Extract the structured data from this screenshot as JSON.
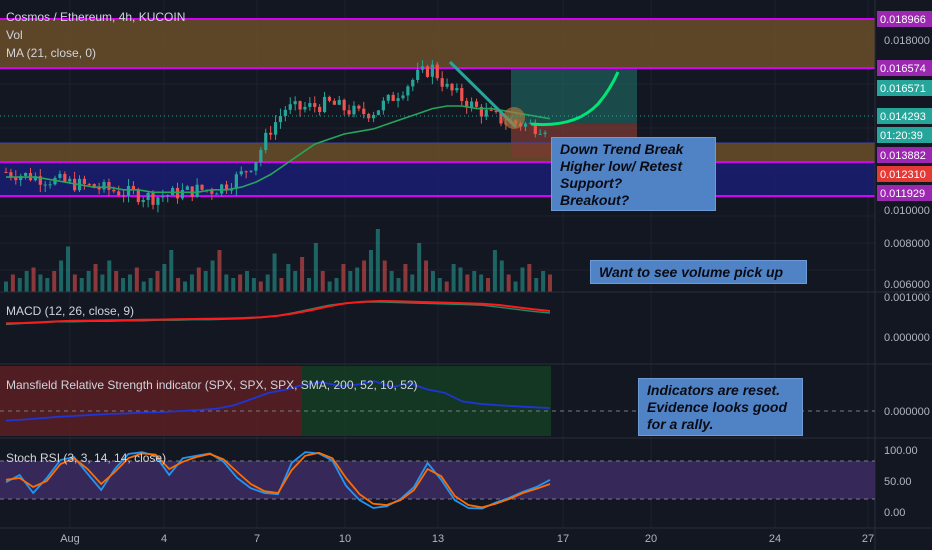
{
  "header": {
    "title": "Cosmos / Ethereum, 4h, KUCOIN",
    "vol_label": "Vol",
    "ma_label": "MA (21, close, 0)"
  },
  "indicators": {
    "macd_label": "MACD (12, 26, close, 9)",
    "mansfield_label": "Mansfield Relative Strength indicator (SPX, SPX, SPX, SMA, 200, 52, 10, 52)",
    "stoch_label": "Stoch RSI (3, 3, 14, 14, close)"
  },
  "notes": {
    "trend": [
      "Down Trend Break",
      "Higher low/ Retest",
      "Support?",
      "Breakout?"
    ],
    "volume": "Want to see volume pick up",
    "indicators": [
      "Indicators are reset.",
      "Evidence looks good",
      "for a rally."
    ]
  },
  "price_axis": {
    "ticks": [
      "0.018000",
      "0.010000",
      "0.008000",
      "0.006000"
    ],
    "tags": [
      {
        "text": "0.018966",
        "bg": "#9c27b0",
        "fg": "#ffffff"
      },
      {
        "text": "0.016574",
        "bg": "#9c27b0",
        "fg": "#ffffff"
      },
      {
        "text": "0.016571",
        "bg": "#26a69a",
        "fg": "#ffffff"
      },
      {
        "text": "0.014293",
        "bg": "#26a69a",
        "fg": "#ffffff"
      },
      {
        "text": "01:20:39",
        "bg": "#26a69a",
        "fg": "#ffffff"
      },
      {
        "text": "0.013882",
        "bg": "#9c27b0",
        "fg": "#ffffff"
      },
      {
        "text": "0.012310",
        "bg": "#e53935",
        "fg": "#ffffff"
      },
      {
        "text": "0.011929",
        "bg": "#9c27b0",
        "fg": "#ffffff"
      }
    ]
  },
  "macd_axis": {
    "ticks": [
      "0.001000",
      "0.000000"
    ]
  },
  "mansfield_axis": {
    "ticks": [
      "0.000000"
    ]
  },
  "stoch_axis": {
    "ticks": [
      "100.00",
      "50.00",
      "0.00"
    ]
  },
  "time_axis": {
    "labels": [
      "Aug",
      "4",
      "7",
      "10",
      "13",
      "17",
      "20",
      "24",
      "27"
    ]
  },
  "colors": {
    "background": "#131722",
    "up": "#26a69a",
    "down": "#ef5350",
    "ma": "#26a65b",
    "resistance_line": "#d500f9",
    "zone_brown": "#7a5a2e",
    "zone_navy": "#1d1e7a",
    "macd": "#2962ff",
    "signal": "#ff1a1a",
    "mansfield": "#1f35d6",
    "stoch_k": "#2196f3",
    "stoch_d": "#ff6d00",
    "note_bg": "#4f83c5",
    "forecast": "#00e676"
  },
  "chart_data": {
    "type": "candlestick",
    "title": "Cosmos / Ethereum, 4h, KUCOIN",
    "x_labels": [
      "Aug",
      "4",
      "7",
      "10",
      "13",
      "17",
      "20",
      "24",
      "27"
    ],
    "last_price": 0.014293,
    "levels": [
      0.018966,
      0.016574,
      0.013882,
      0.011929
    ],
    "zones": [
      {
        "from": 0.016574,
        "to": 0.018966,
        "color": "brown"
      },
      {
        "from": 0.011929,
        "to": 0.013882,
        "color": "navy"
      }
    ],
    "price_series": [
      0.0125,
      0.0124,
      0.0123,
      0.0122,
      0.0121,
      0.012,
      0.0119,
      0.0118,
      0.0117,
      0.0116,
      0.0115,
      0.0116,
      0.0117,
      0.0118,
      0.0118,
      0.012,
      0.0124,
      0.013,
      0.0142,
      0.015,
      0.015,
      0.0151,
      0.0152,
      0.015,
      0.0148,
      0.0149,
      0.0153,
      0.0158,
      0.0163,
      0.0166,
      0.0158,
      0.0154,
      0.015,
      0.0147,
      0.0145,
      0.0144,
      0.0143,
      0.0143
    ],
    "ma_series": [
      0.0123,
      0.0123,
      0.0123,
      0.0122,
      0.0121,
      0.012,
      0.0119,
      0.0119,
      0.0118,
      0.0118,
      0.0117,
      0.0117,
      0.0117,
      0.0117,
      0.0118,
      0.0118,
      0.0119,
      0.0121,
      0.0124,
      0.0128,
      0.0132,
      0.0136,
      0.0138,
      0.014,
      0.0141,
      0.0142,
      0.0144,
      0.0146,
      0.0148,
      0.015,
      0.0151,
      0.0151,
      0.015,
      0.015,
      0.0149,
      0.0148,
      0.0147,
      0.0146
    ],
    "volume": [
      3,
      5,
      4,
      6,
      7,
      5,
      4,
      6,
      9,
      13,
      5,
      4,
      6,
      8,
      5,
      9,
      6,
      4,
      5,
      7,
      3,
      4,
      6,
      8,
      12,
      4,
      3,
      5,
      7,
      6,
      9,
      12,
      5,
      4,
      5,
      6,
      4,
      3,
      5,
      11,
      4,
      8,
      6,
      10,
      4,
      14,
      6,
      3,
      4,
      8,
      6,
      7,
      9,
      12,
      18,
      9,
      6,
      4,
      8,
      5,
      14,
      9,
      6,
      4,
      3,
      8,
      7,
      5,
      6,
      5,
      4,
      12,
      9,
      5,
      3,
      7,
      8,
      4,
      6,
      5
    ],
    "macd": [
      0.00055,
      0.00057,
      0.00058,
      0.0006,
      0.0006,
      0.00061,
      0.00061,
      0.00062,
      0.00062,
      0.00063,
      0.00063,
      0.00064,
      0.00064,
      0.00065,
      0.00066,
      0.00068,
      0.00072,
      0.00078,
      0.00085,
      0.00092,
      0.00096,
      0.00098,
      0.00098,
      0.00097,
      0.00096,
      0.00095,
      0.00094,
      0.00093,
      0.00092,
      0.00088,
      0.00084,
      0.0008,
      0.00077
    ],
    "mansfield": [
      -0.2,
      -0.18,
      -0.15,
      -0.12,
      -0.1,
      -0.08,
      -0.06,
      -0.05,
      -0.03,
      -0.02,
      0.0,
      0.02,
      0.05,
      0.12,
      0.25,
      0.38,
      0.45,
      0.55,
      0.6,
      0.52,
      0.55,
      0.62,
      0.5,
      0.58,
      0.45,
      0.38,
      0.2,
      0.15,
      0.12,
      0.1,
      0.08,
      0.06
    ],
    "stoch_k": [
      48,
      60,
      30,
      55,
      85,
      90,
      62,
      35,
      70,
      95,
      98,
      92,
      60,
      88,
      92,
      96,
      82,
      55,
      38,
      30,
      28,
      80,
      98,
      96,
      84,
      42,
      18,
      5,
      8,
      20,
      40,
      80,
      52,
      18,
      5,
      4,
      14,
      22,
      32,
      40,
      52
    ],
    "stoch_d": [
      52,
      55,
      40,
      50,
      78,
      88,
      70,
      45,
      65,
      88,
      96,
      94,
      70,
      82,
      90,
      95,
      86,
      65,
      45,
      33,
      30,
      68,
      92,
      97,
      88,
      55,
      28,
      12,
      10,
      18,
      35,
      70,
      58,
      25,
      10,
      6,
      12,
      20,
      30,
      37,
      45
    ]
  }
}
